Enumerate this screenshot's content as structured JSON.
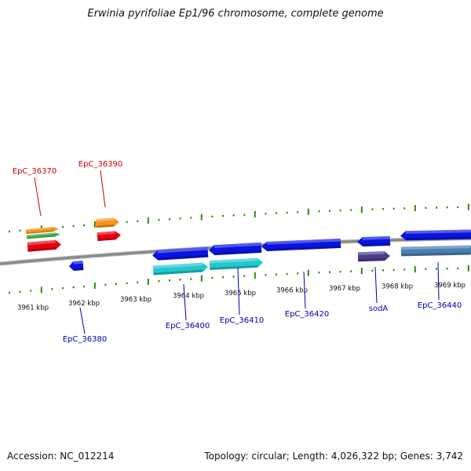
{
  "title": "Erwinia pyrifoliae Ep1/96 chromosome, complete genome",
  "footer": {
    "accession": "Accession: NC_012214",
    "summary": "Topology: circular; Length: 4,026,322 bp; Genes: 3,742"
  },
  "colors": {
    "forward_label": "#cc0000",
    "reverse_label": "#0000aa",
    "tick": "#2e8b00",
    "backbone": "#8a8a8a",
    "gene_red": "#e8000f",
    "gene_orange": "#f7941d",
    "gene_green": "#39b54a",
    "gene_blue": "#0a14e0",
    "gene_cyan": "#22c8d0",
    "gene_purple": "#4a3d8c",
    "gene_steel": "#4a7fb0"
  },
  "scale_labels": [
    "3961 kbp",
    "3962 kbp",
    "3963 kbp",
    "3964 kbp",
    "3965 kbp",
    "3966 kbp",
    "3967 kbp",
    "3968 kbp",
    "3969 kbp"
  ],
  "gene_labels": {
    "EpC_36370": "EpC_36370",
    "EpC_36390": "EpC_36390",
    "EpC_36380": "EpC_36380",
    "EpC_36400": "EpC_36400",
    "EpC_36410": "EpC_36410",
    "EpC_36420": "EpC_36420",
    "sodA": "sodA",
    "EpC_36440": "EpC_36440"
  }
}
